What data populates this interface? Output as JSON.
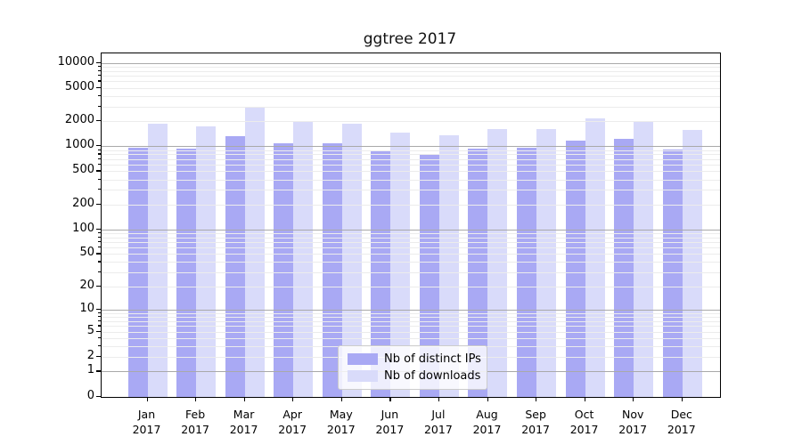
{
  "title": "ggtree 2017",
  "chart_data": {
    "type": "bar",
    "title": "ggtree 2017",
    "yscale": "log1p",
    "ylim": [
      0,
      13000
    ],
    "grid": true,
    "legend_position": "lower center",
    "categories": [
      "Jan 2017",
      "Feb 2017",
      "Mar 2017",
      "Apr 2017",
      "May 2017",
      "Jun 2017",
      "Jul 2017",
      "Aug 2017",
      "Sep 2017",
      "Oct 2017",
      "Nov 2017",
      "Dec 2017"
    ],
    "series": [
      {
        "name": "Nb of distinct IPs",
        "color": "#a9a9f4",
        "values": [
          970,
          935,
          1350,
          1085,
          1110,
          890,
          825,
          955,
          980,
          1170,
          1230,
          925
        ]
      },
      {
        "name": "Nb of downloads",
        "color": "#d9dbfa",
        "values": [
          1905,
          1750,
          3000,
          1990,
          1905,
          1460,
          1360,
          1645,
          1640,
          2200,
          2040,
          1600
        ]
      }
    ],
    "y_tick_labels": [
      "0",
      "1",
      "2",
      "5",
      "10",
      "20",
      "50",
      "100",
      "200",
      "500",
      "1000",
      "2000",
      "5000",
      "10000"
    ],
    "axis_color": "#000000",
    "major_grid_color": "#a9a9a9",
    "minor_grid_color": "#ececec"
  }
}
